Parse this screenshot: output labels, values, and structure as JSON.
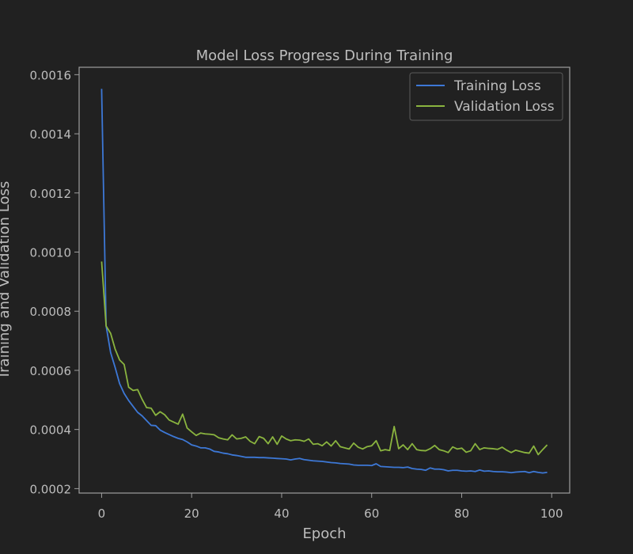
{
  "chart_data": {
    "type": "line",
    "title": "Model Loss Progress During Training",
    "xlabel": "Epoch",
    "ylabel": "Training and Validation Loss",
    "xlim": [
      -5,
      104
    ],
    "ylim": [
      0.000185,
      0.001625
    ],
    "xticks": [
      0,
      20,
      40,
      60,
      80,
      100
    ],
    "yticks": [
      0.0002,
      0.0004,
      0.0006,
      0.0008,
      0.001,
      0.0012,
      0.0014,
      0.0016
    ],
    "ytick_labels": [
      "0.0002",
      "0.0004",
      "0.0006",
      "0.0008",
      "0.0010",
      "0.0012",
      "0.0014",
      "0.0016"
    ],
    "grid": false,
    "legend_position": "top-right",
    "colors": {
      "background": "#212121",
      "axes": "#9e9e9e",
      "text": "#bdbdbd"
    },
    "series": [
      {
        "name": "Training Loss",
        "color": "#3d78d6",
        "x": [
          0,
          1,
          2,
          3,
          4,
          5,
          6,
          7,
          8,
          9,
          10,
          11,
          12,
          13,
          14,
          15,
          16,
          17,
          18,
          19,
          20,
          21,
          22,
          23,
          24,
          25,
          26,
          27,
          28,
          29,
          30,
          31,
          32,
          33,
          34,
          35,
          36,
          37,
          38,
          39,
          40,
          41,
          42,
          43,
          44,
          45,
          46,
          47,
          48,
          49,
          50,
          51,
          52,
          53,
          54,
          55,
          56,
          57,
          58,
          59,
          60,
          61,
          62,
          63,
          64,
          65,
          66,
          67,
          68,
          69,
          70,
          71,
          72,
          73,
          74,
          75,
          76,
          77,
          78,
          79,
          80,
          81,
          82,
          83,
          84,
          85,
          86,
          87,
          88,
          89,
          90,
          91,
          92,
          93,
          94,
          95,
          96,
          97,
          98,
          99
        ],
        "values": [
          0.001552,
          0.00075,
          0.00066,
          0.00061,
          0.000555,
          0.000522,
          0.000498,
          0.000478,
          0.000458,
          0.000446,
          0.00043,
          0.000414,
          0.000413,
          0.000398,
          0.00039,
          0.000383,
          0.000376,
          0.00037,
          0.000366,
          0.000358,
          0.000348,
          0.000344,
          0.000338,
          0.000338,
          0.000334,
          0.000326,
          0.000324,
          0.00032,
          0.000318,
          0.000314,
          0.000312,
          0.000309,
          0.000306,
          0.000306,
          0.000306,
          0.000305,
          0.000305,
          0.000304,
          0.000303,
          0.000302,
          0.000301,
          0.0003,
          0.000297,
          0.0003,
          0.000302,
          0.000298,
          0.000296,
          0.000294,
          0.000293,
          0.000292,
          0.00029,
          0.000288,
          0.000287,
          0.000285,
          0.000284,
          0.000283,
          0.00028,
          0.000279,
          0.000279,
          0.000279,
          0.000278,
          0.000284,
          0.000275,
          0.000274,
          0.000273,
          0.000272,
          0.000272,
          0.000271,
          0.000273,
          0.000268,
          0.000266,
          0.000265,
          0.000262,
          0.00027,
          0.000266,
          0.000266,
          0.000264,
          0.00026,
          0.000262,
          0.000262,
          0.00026,
          0.000259,
          0.00026,
          0.000258,
          0.000263,
          0.000259,
          0.00026,
          0.000258,
          0.000257,
          0.000257,
          0.000256,
          0.000254,
          0.000256,
          0.000257,
          0.000258,
          0.000254,
          0.000258,
          0.000255,
          0.000253,
          0.000255
        ]
      },
      {
        "name": "Validation Loss",
        "color": "#8ab43f",
        "x": [
          0,
          1,
          2,
          3,
          4,
          5,
          6,
          7,
          8,
          9,
          10,
          11,
          12,
          13,
          14,
          15,
          16,
          17,
          18,
          19,
          20,
          21,
          22,
          23,
          24,
          25,
          26,
          27,
          28,
          29,
          30,
          31,
          32,
          33,
          34,
          35,
          36,
          37,
          38,
          39,
          40,
          41,
          42,
          43,
          44,
          45,
          46,
          47,
          48,
          49,
          50,
          51,
          52,
          53,
          54,
          55,
          56,
          57,
          58,
          59,
          60,
          61,
          62,
          63,
          64,
          65,
          66,
          67,
          68,
          69,
          70,
          71,
          72,
          73,
          74,
          75,
          76,
          77,
          78,
          79,
          80,
          81,
          82,
          83,
          84,
          85,
          86,
          87,
          88,
          89,
          90,
          91,
          92,
          93,
          94,
          95,
          96,
          97,
          98,
          99
        ],
        "values": [
          0.000968,
          0.00075,
          0.000725,
          0.000672,
          0.000635,
          0.00062,
          0.000543,
          0.000532,
          0.000535,
          0.000502,
          0.000474,
          0.000472,
          0.000448,
          0.00046,
          0.00045,
          0.000432,
          0.000425,
          0.000418,
          0.000452,
          0.000405,
          0.000392,
          0.00038,
          0.000388,
          0.000385,
          0.000384,
          0.000382,
          0.000372,
          0.000368,
          0.000365,
          0.000382,
          0.000368,
          0.00037,
          0.000375,
          0.00036,
          0.000352,
          0.000376,
          0.00037,
          0.000352,
          0.000375,
          0.00035,
          0.000378,
          0.000368,
          0.000362,
          0.000365,
          0.000364,
          0.00036,
          0.000368,
          0.00035,
          0.000352,
          0.000345,
          0.000358,
          0.000344,
          0.000362,
          0.000342,
          0.000338,
          0.000334,
          0.000354,
          0.00034,
          0.000334,
          0.000342,
          0.000345,
          0.000362,
          0.000328,
          0.000332,
          0.000329,
          0.00041,
          0.000335,
          0.000348,
          0.000332,
          0.000352,
          0.000332,
          0.000329,
          0.000328,
          0.000335,
          0.000346,
          0.000332,
          0.000328,
          0.000322,
          0.000341,
          0.000334,
          0.000337,
          0.000323,
          0.000328,
          0.000352,
          0.000332,
          0.000338,
          0.000336,
          0.000335,
          0.000333,
          0.00034,
          0.00033,
          0.000322,
          0.00033,
          0.000326,
          0.000322,
          0.00032,
          0.000344,
          0.000315,
          0.000332,
          0.000348
        ]
      }
    ]
  }
}
